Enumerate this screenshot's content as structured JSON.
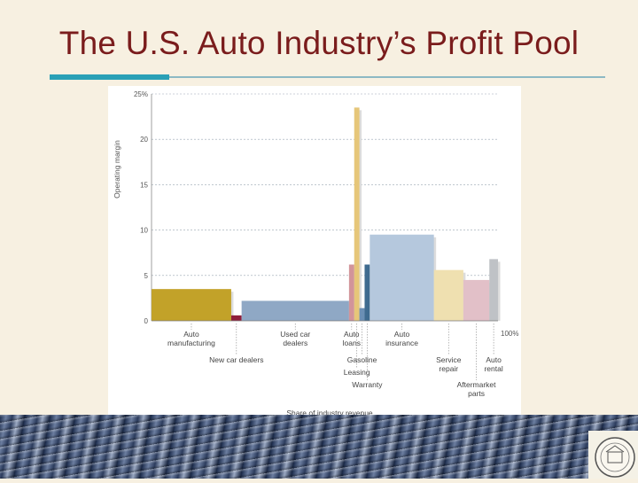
{
  "slide": {
    "title": "The U.S. Auto Industry’s Profit Pool"
  },
  "colors": {
    "title": "#7a1c1c",
    "accent_rule": "#2aa0b6",
    "background": "#f7f0e1"
  },
  "chart_data": {
    "type": "bar",
    "variant": "variable-width (profit pool)",
    "ylabel": "Operating margin",
    "xlabel": "Share of industry revenue",
    "yticks": [
      "0",
      "5",
      "10",
      "15",
      "20",
      "25%"
    ],
    "ylim": [
      0,
      25
    ],
    "xlim": [
      0,
      100
    ],
    "x_end_label": "100%",
    "grid": true,
    "segments": [
      {
        "name": "Auto manufacturing",
        "label": "Auto\nmanufacturing",
        "start": 0,
        "end": 23,
        "value": 3.5,
        "color": "#c2a229",
        "label_row": "upper"
      },
      {
        "name": "New car dealers",
        "label": "New car dealers",
        "start": 23,
        "end": 26,
        "value": 0.6,
        "color": "#8f1f3c",
        "label_row": "lower"
      },
      {
        "name": "Used car dealers",
        "label": "Used car\ndealers",
        "start": 26,
        "end": 57,
        "value": 2.2,
        "color": "#8fa8c5",
        "label_row": "upper"
      },
      {
        "name": "Auto loans",
        "label": "Auto\nloans",
        "start": 57,
        "end": 58.5,
        "value": 6.2,
        "color": "#d2949a",
        "label_row": "upper"
      },
      {
        "name": "Leasing",
        "label": "Leasing",
        "start": 58.5,
        "end": 60,
        "value": 23.5,
        "color": "#e6c679",
        "label_row": "lowest"
      },
      {
        "name": "Gasoline",
        "label": "Gasoline",
        "start": 60,
        "end": 61.5,
        "value": 1.4,
        "color": "#6b8fb4",
        "label_row": "lower"
      },
      {
        "name": "Warranty",
        "label": "Warranty",
        "start": 61.5,
        "end": 63,
        "value": 6.2,
        "color": "#3f6b8f",
        "label_row": "bottom"
      },
      {
        "name": "Auto insurance",
        "label": "Auto\ninsurance",
        "start": 63,
        "end": 81.5,
        "value": 9.5,
        "color": "#b5c8dd",
        "label_row": "upper"
      },
      {
        "name": "Service repair",
        "label": "Service\nrepair",
        "start": 81.5,
        "end": 90,
        "value": 5.6,
        "color": "#efe0b0",
        "label_row": "lower"
      },
      {
        "name": "Aftermarket parts",
        "label": "Aftermarket\nparts",
        "start": 90,
        "end": 97.5,
        "value": 4.5,
        "color": "#e2c0c8",
        "label_row": "bottom"
      },
      {
        "name": "Auto rental",
        "label": "Auto\nrental",
        "start": 97.5,
        "end": 100,
        "value": 6.8,
        "color": "#bfc2c6",
        "label_row": "lower"
      }
    ]
  }
}
